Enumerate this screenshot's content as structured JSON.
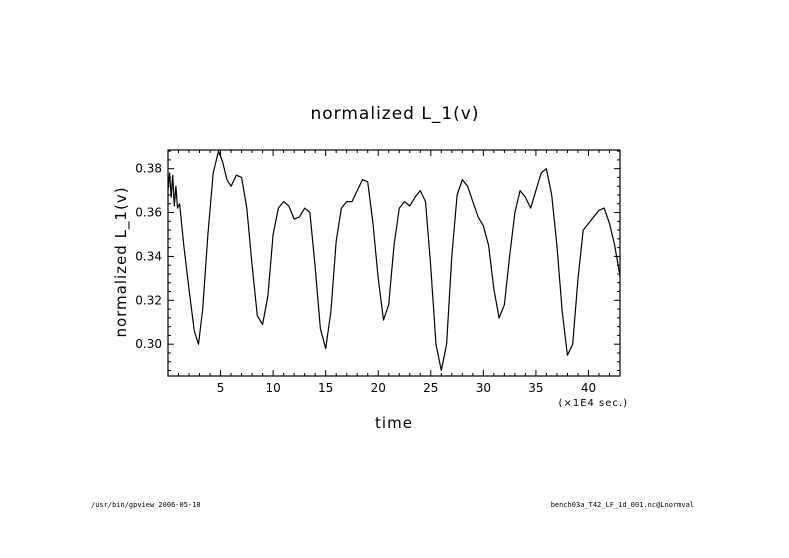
{
  "footer": {
    "left": "/usr/bin/gpview  2006-05-18",
    "right": "bench03a_T42_LF_1d_001.nc@Lnormval"
  },
  "chart_data": {
    "type": "line",
    "title": "normalized L_1(v)",
    "xlabel": "time",
    "xunit": "(×1E4 sec.)",
    "ylabel": "normalized L_1(v)",
    "xlim": [
      0,
      43
    ],
    "ylim": [
      0.2855,
      0.3885
    ],
    "xticks": [
      5,
      10,
      15,
      20,
      25,
      30,
      35,
      40
    ],
    "yticks": [
      0.3,
      0.32,
      0.34,
      0.36,
      0.38
    ],
    "ytick_labels": [
      "0.30",
      "0.32",
      "0.34",
      "0.36",
      "0.38"
    ],
    "grid": false,
    "series": [
      {
        "x": [
          0,
          0.15,
          0.3,
          0.45,
          0.6,
          0.75,
          0.9,
          1.1,
          1.5,
          2.0,
          2.5,
          2.9,
          3.3,
          3.8,
          4.3,
          4.8,
          5.2,
          5.6,
          6.0,
          6.5,
          7.0,
          7.5,
          8.0,
          8.5,
          9.0,
          9.5,
          10.0,
          10.5,
          11.0,
          11.5,
          12.0,
          12.5,
          13.0,
          13.5,
          14.0,
          14.5,
          15.0,
          15.5,
          16.0,
          16.5,
          17.0,
          17.5,
          18.0,
          18.5,
          19.0,
          19.5,
          20.0,
          20.5,
          21.0,
          21.5,
          22.0,
          22.5,
          23.0,
          23.5,
          24.0,
          24.5,
          25.0,
          25.5,
          26.0,
          26.5,
          27.0,
          27.5,
          28.0,
          28.5,
          29.0,
          29.5,
          30.0,
          30.5,
          31.0,
          31.5,
          32.0,
          32.5,
          33.0,
          33.5,
          34.0,
          34.5,
          35.0,
          35.5,
          36.0,
          36.5,
          37.0,
          37.5,
          38.0,
          38.5,
          39.0,
          39.5,
          40.0,
          40.5,
          41.0,
          41.5,
          42.0,
          42.5,
          43.0
        ],
        "values": [
          0.37,
          0.378,
          0.367,
          0.377,
          0.363,
          0.372,
          0.362,
          0.364,
          0.345,
          0.325,
          0.306,
          0.3,
          0.316,
          0.35,
          0.378,
          0.388,
          0.383,
          0.375,
          0.372,
          0.377,
          0.376,
          0.362,
          0.336,
          0.313,
          0.309,
          0.322,
          0.35,
          0.362,
          0.365,
          0.363,
          0.357,
          0.358,
          0.362,
          0.36,
          0.335,
          0.307,
          0.298,
          0.315,
          0.347,
          0.362,
          0.365,
          0.365,
          0.37,
          0.375,
          0.374,
          0.355,
          0.33,
          0.311,
          0.318,
          0.345,
          0.362,
          0.365,
          0.363,
          0.367,
          0.37,
          0.365,
          0.335,
          0.3,
          0.288,
          0.3,
          0.34,
          0.368,
          0.375,
          0.372,
          0.365,
          0.358,
          0.354,
          0.345,
          0.325,
          0.312,
          0.318,
          0.34,
          0.36,
          0.37,
          0.367,
          0.362,
          0.37,
          0.378,
          0.38,
          0.368,
          0.345,
          0.315,
          0.295,
          0.3,
          0.33,
          0.352,
          0.355,
          0.358,
          0.361,
          0.362,
          0.355,
          0.345,
          0.331
        ]
      }
    ]
  }
}
